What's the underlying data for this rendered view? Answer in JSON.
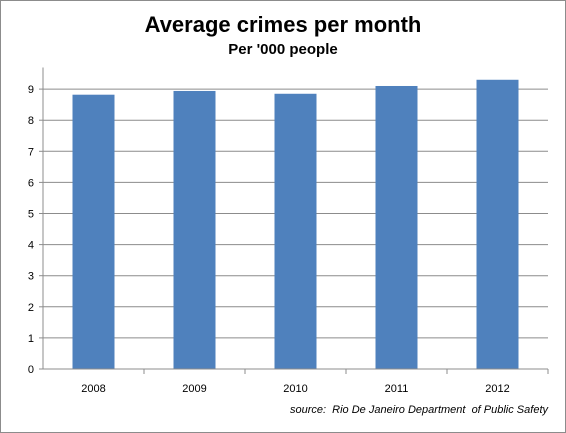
{
  "chart_data": {
    "type": "bar",
    "title": "Average crimes per month",
    "subtitle": "Per '000 people",
    "categories": [
      "2008",
      "2009",
      "2010",
      "2011",
      "2012"
    ],
    "values": [
      8.82,
      8.94,
      8.85,
      9.1,
      9.3
    ],
    "xlabel": "",
    "ylabel": "",
    "ylim": [
      0,
      9.5
    ],
    "yticks": [
      "0",
      "1",
      "2",
      "3",
      "4",
      "5",
      "6",
      "7",
      "8",
      "9"
    ],
    "grid": true,
    "legend": "none",
    "bar_color": "#4f81bd",
    "source": "source:  Rio De Janeiro Department  of Public Safety"
  }
}
